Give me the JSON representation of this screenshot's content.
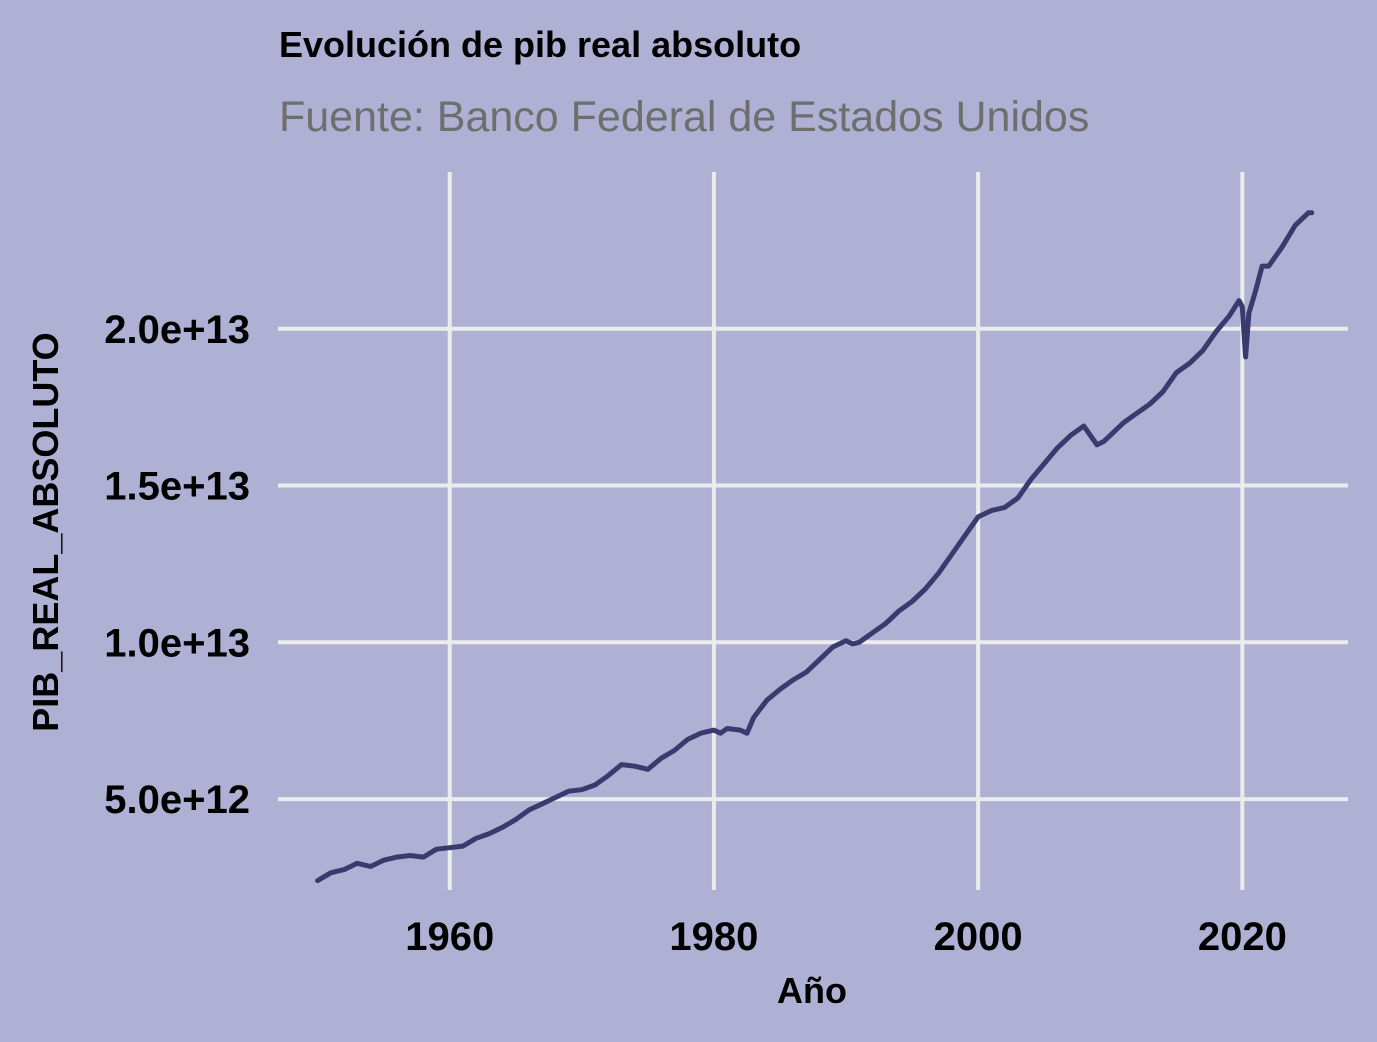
{
  "chart_data": {
    "type": "line",
    "title": "Evolución de pib real absoluto",
    "subtitle": "Fuente: Banco Federal de Estados Unidos",
    "xlabel": "Año",
    "ylabel": "PIB_REAL_ABSOLUTO",
    "xlim": [
      1947,
      2028
    ],
    "ylim": [
      2100000000000.0,
      25000000000000.0
    ],
    "x_ticks": [
      1960,
      1980,
      2000,
      2020
    ],
    "x_tick_labels": [
      "1960",
      "1980",
      "2000",
      "2020"
    ],
    "y_ticks": [
      5000000000000.0,
      10000000000000.0,
      15000000000000.0,
      20000000000000.0
    ],
    "y_tick_labels": [
      "5.0e+12",
      "1.0e+13",
      "1.5e+13",
      "2.0e+13"
    ],
    "grid": true,
    "colors": {
      "background": "#afb1d4",
      "line": "#3a3a6e",
      "grid": "#ececec"
    },
    "series": [
      {
        "name": "PIB_REAL_ABSOLUTO",
        "x": [
          1950.0,
          1951.0,
          1952.0,
          1953.0,
          1954.0,
          1955.0,
          1956.0,
          1957.0,
          1958.0,
          1959.0,
          1960.0,
          1961.0,
          1962.0,
          1963.0,
          1964.0,
          1965.0,
          1966.0,
          1967.0,
          1968.0,
          1969.0,
          1970.0,
          1971.0,
          1972.0,
          1973.0,
          1974.0,
          1975.0,
          1976.0,
          1977.0,
          1978.0,
          1979.0,
          1980.0,
          1980.5,
          1981.0,
          1982.0,
          1982.5,
          1983.0,
          1984.0,
          1985.0,
          1986.0,
          1987.0,
          1988.0,
          1989.0,
          1990.0,
          1990.5,
          1991.0,
          1992.0,
          1993.0,
          1994.0,
          1995.0,
          1996.0,
          1997.0,
          1998.0,
          1999.0,
          2000.0,
          2001.0,
          2002.0,
          2003.0,
          2004.0,
          2005.0,
          2006.0,
          2007.0,
          2008.0,
          2008.5,
          2009.0,
          2009.5,
          2010.0,
          2011.0,
          2012.0,
          2013.0,
          2014.0,
          2015.0,
          2016.0,
          2017.0,
          2018.0,
          2019.0,
          2019.75,
          2020.0,
          2020.25,
          2020.5,
          2021.0,
          2021.5,
          2022.0,
          2023.0,
          2024.0,
          2025.0,
          2025.25
        ],
        "y": [
          2400000000000.0,
          2650000000000.0,
          2750000000000.0,
          2950000000000.0,
          2850000000000.0,
          3050000000000.0,
          3150000000000.0,
          3200000000000.0,
          3150000000000.0,
          3400000000000.0,
          3450000000000.0,
          3500000000000.0,
          3750000000000.0,
          3900000000000.0,
          4100000000000.0,
          4350000000000.0,
          4650000000000.0,
          4850000000000.0,
          5050000000000.0,
          5250000000000.0,
          5300000000000.0,
          5450000000000.0,
          5750000000000.0,
          6100000000000.0,
          6050000000000.0,
          5950000000000.0,
          6300000000000.0,
          6550000000000.0,
          6900000000000.0,
          7100000000000.0,
          7200000000000.0,
          7100000000000.0,
          7250000000000.0,
          7200000000000.0,
          7100000000000.0,
          7600000000000.0,
          8150000000000.0,
          8500000000000.0,
          8800000000000.0,
          9050000000000.0,
          9450000000000.0,
          9850000000000.0,
          10050000000000.0,
          9950000000000.0,
          10000000000000.0,
          10300000000000.0,
          10600000000000.0,
          11000000000000.0,
          11300000000000.0,
          11700000000000.0,
          12200000000000.0,
          12800000000000.0,
          13400000000000.0,
          14000000000000.0,
          14200000000000.0,
          14300000000000.0,
          14600000000000.0,
          15200000000000.0,
          15700000000000.0,
          16200000000000.0,
          16600000000000.0,
          16900000000000.0,
          16600000000000.0,
          16300000000000.0,
          16400000000000.0,
          16600000000000.0,
          17000000000000.0,
          17300000000000.0,
          17600000000000.0,
          18000000000000.0,
          18600000000000.0,
          18900000000000.0,
          19300000000000.0,
          19900000000000.0,
          20400000000000.0,
          20900000000000.0,
          20700000000000.0,
          19100000000000.0,
          20500000000000.0,
          21200000000000.0,
          22000000000000.0,
          22000000000000.0,
          22600000000000.0,
          23300000000000.0,
          23700000000000.0,
          23700000000000.0
        ]
      }
    ]
  }
}
